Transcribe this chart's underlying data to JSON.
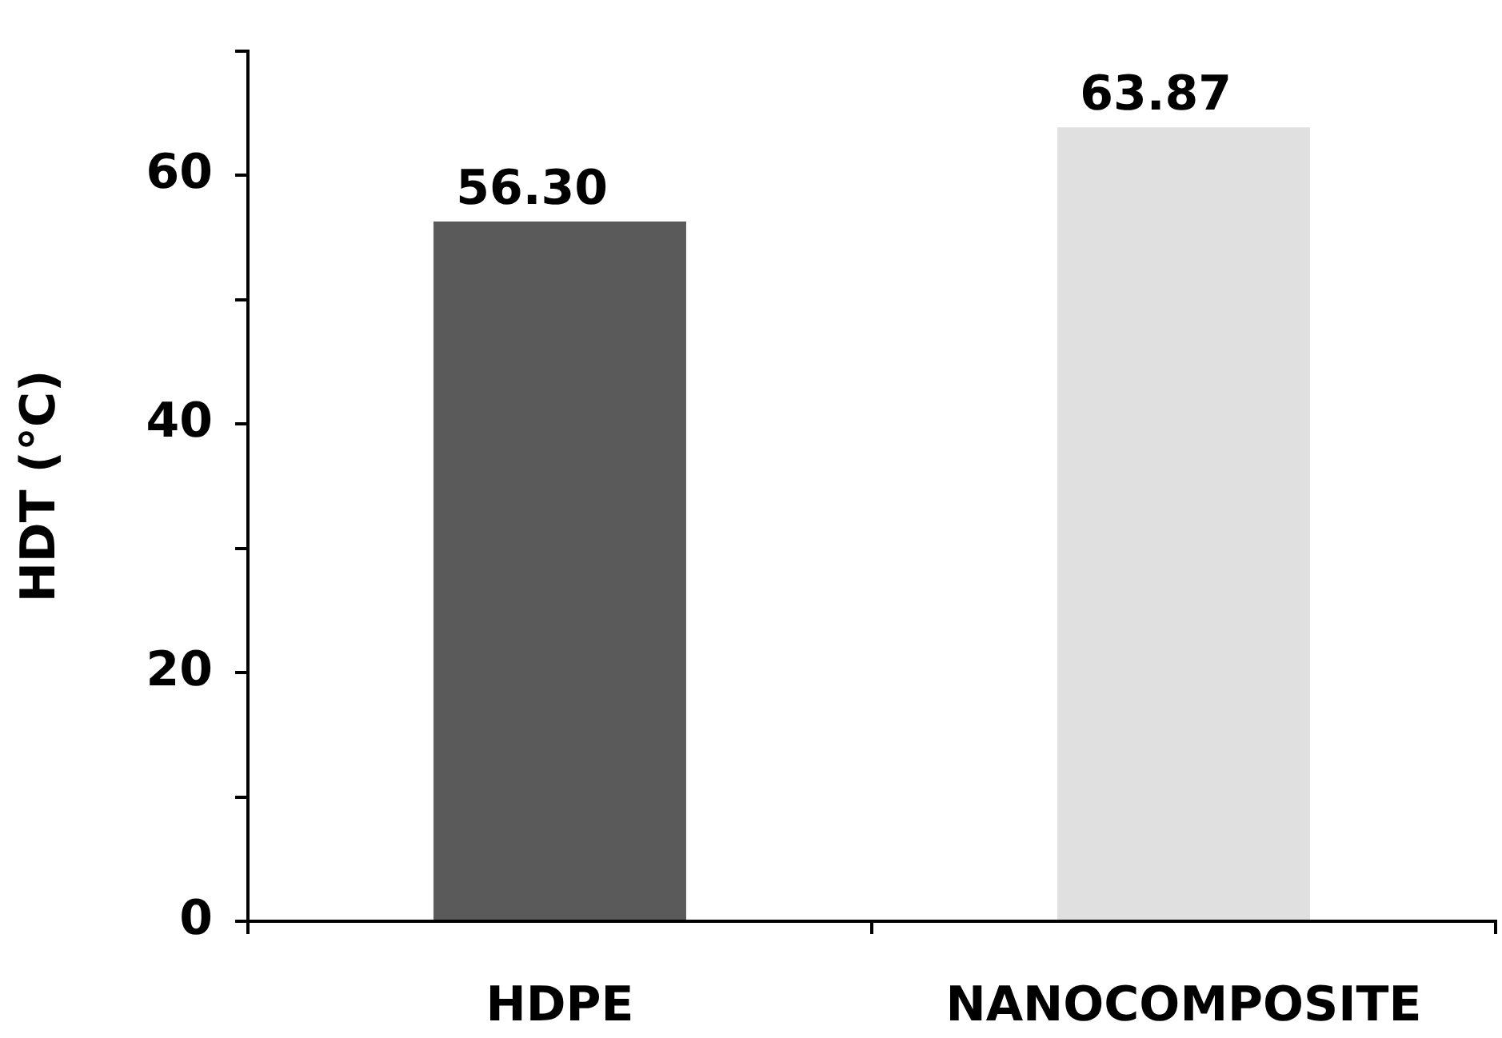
{
  "chart_data": {
    "type": "bar",
    "ylabel": "HDT (°C)",
    "categories": [
      "HDPE",
      "NANOCOMPOSITE"
    ],
    "values": [
      56.3,
      63.87
    ],
    "colors": [
      "#5a5a5a",
      "#e0e0e0"
    ],
    "value_labels": [
      "56.30",
      "63.87"
    ],
    "ylim": [
      0,
      70
    ],
    "yticks": [
      0,
      {
        "value": 10,
        "label": null
      },
      20,
      {
        "value": 30,
        "label": null
      },
      40,
      {
        "value": 50,
        "label": null
      },
      60,
      {
        "value": 70,
        "label": null
      }
    ],
    "grid": false,
    "legend": false
  }
}
